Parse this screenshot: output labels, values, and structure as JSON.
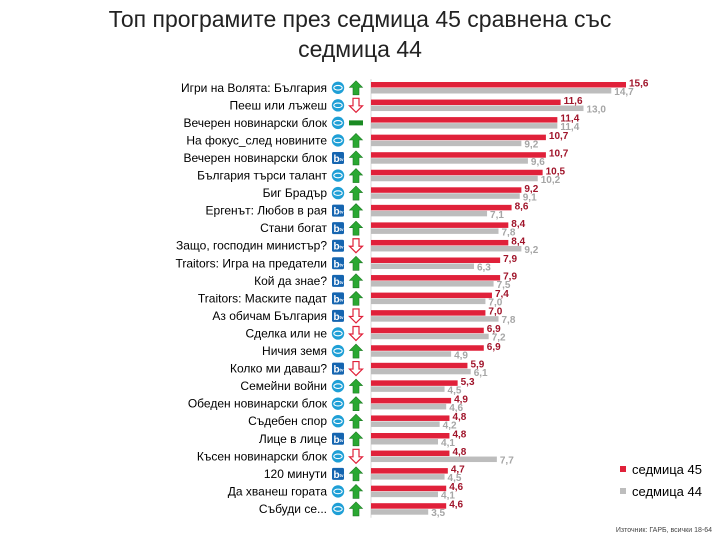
{
  "title_lines": [
    "Топ програмите през седмица 45 сравнена със",
    "седмица 44"
  ],
  "source": "Източник: ГАРБ, всички 18-64",
  "colors": {
    "week45": "#e0213a",
    "week44": "#bdbdbd",
    "week45_label": "#a0142a",
    "week44_label": "#a6a6a6",
    "up": "#2aa832",
    "down": "#e0213a",
    "same": "#1a8a22",
    "nova": "#1e9fd6",
    "btv": "#1565b0"
  },
  "chart_data": {
    "type": "bar",
    "orientation": "horizontal",
    "categories": [
      "Игри на Волята: България",
      "Пееш или лъжеш",
      "Вечерен новинарски блок",
      "На фокус_след новините",
      "Вечерен новинарски блок",
      "България търси талант",
      "Биг Брадър",
      "Ергенът: Любов в рая",
      "Стани богат",
      "Защо, господин министър?",
      "Traitors: Игра на предатели",
      "Кой да знае?",
      "Traitors: Маските падат",
      "Аз обичам България",
      "Сделка или не",
      "Ничия земя",
      "Колко ми даваш?",
      "Семейни войни",
      "Обеден новинарски блок",
      "Съдебен спор",
      "Лице в лице",
      "Късен новинарски блок",
      "120 минути",
      "Да хванеш гората",
      "Събуди се..."
    ],
    "channels": [
      "nova",
      "nova",
      "nova",
      "nova",
      "btv",
      "nova",
      "nova",
      "btv",
      "btv",
      "btv",
      "btv",
      "btv",
      "btv",
      "btv",
      "nova",
      "nova",
      "btv",
      "nova",
      "nova",
      "nova",
      "btv",
      "nova",
      "btv",
      "nova",
      "nova"
    ],
    "trends": [
      "up",
      "down",
      "same",
      "up",
      "up",
      "up",
      "up",
      "up",
      "up",
      "down",
      "up",
      "up",
      "up",
      "down",
      "down",
      "up",
      "down",
      "up",
      "up",
      "up",
      "up",
      "down",
      "up",
      "up",
      "up"
    ],
    "series": [
      {
        "name": "седмица 45",
        "values": [
          15.6,
          11.6,
          11.4,
          10.7,
          10.7,
          10.5,
          9.2,
          8.6,
          8.4,
          8.4,
          7.9,
          7.9,
          7.4,
          7.0,
          6.9,
          6.9,
          5.9,
          5.3,
          4.9,
          4.8,
          4.8,
          4.8,
          4.7,
          4.6,
          4.6
        ],
        "labels": [
          "15,6",
          "11,6",
          "11,4",
          "10,7",
          "10,7",
          "10,5",
          "9,2",
          "8,6",
          "8,4",
          "8,4",
          "7,9",
          "7,9",
          "7,4",
          "7,0",
          "6,9",
          "6,9",
          "5,9",
          "5,3",
          "4,9",
          "4,8",
          "4,8",
          "4,8",
          "4,7",
          "4,6",
          "4,6"
        ]
      },
      {
        "name": "седмица 44",
        "values": [
          14.7,
          13.0,
          11.4,
          9.2,
          9.6,
          10.2,
          9.1,
          7.1,
          7.8,
          9.2,
          6.3,
          7.5,
          7.0,
          7.8,
          7.2,
          4.9,
          6.1,
          4.5,
          4.6,
          4.2,
          4.1,
          7.7,
          4.5,
          4.1,
          3.5
        ],
        "labels": [
          "14,7",
          "13,0",
          "11,4",
          "9,2",
          "9,6",
          "10,2",
          "9,1",
          "7,1",
          "7,8",
          "9,2",
          "6,3",
          "7,5",
          "7,0",
          "7,8",
          "7,2",
          "4,9",
          "6,1",
          "4,5",
          "4,6",
          "4,2",
          "4,1",
          "7,7",
          "4,5",
          "4,1",
          "3,5"
        ]
      }
    ],
    "xlim": [
      0,
      16.5
    ],
    "legend_position": "bottom-right",
    "grid": false
  }
}
